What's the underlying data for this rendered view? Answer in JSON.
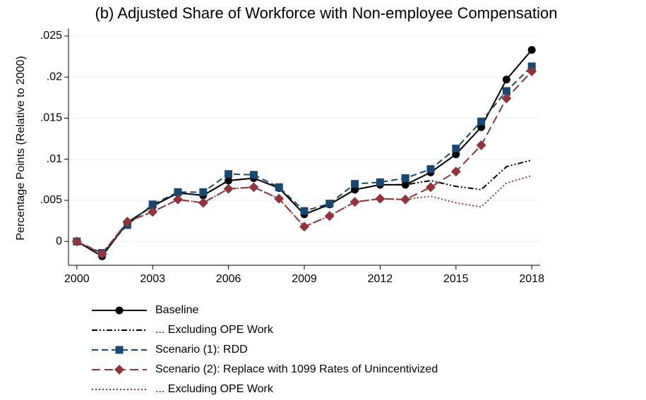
{
  "chart_data": {
    "type": "line",
    "title": "(b) Adjusted Share of Workforce with Non-employee Compensation",
    "y_label": "Percentage Points (Relative to 2000)",
    "x": [
      2000,
      2001,
      2002,
      2003,
      2004,
      2005,
      2006,
      2007,
      2008,
      2009,
      2010,
      2011,
      2012,
      2013,
      2014,
      2015,
      2016,
      2017,
      2018
    ],
    "xlim": [
      1999.67,
      2018.33
    ],
    "xticks": [
      2000,
      2003,
      2006,
      2009,
      2012,
      2015,
      2018
    ],
    "ylim": [
      -0.0029,
      0.0259
    ],
    "yticks": [
      0,
      {
        "value": 0.005,
        "label": ".005"
      },
      {
        "value": 0.01,
        "label": ".01"
      },
      {
        "value": 0.015,
        "label": ".015"
      },
      {
        "value": 0.02,
        "label": ".02"
      },
      {
        "value": 0.025,
        "label": ".025"
      }
    ],
    "series": [
      {
        "name": "Baseline",
        "color": "#000000",
        "dash": "solid",
        "marker": "circle",
        "values": [
          0,
          -0.0018,
          0.0023,
          0.0043,
          0.0059,
          0.0056,
          0.0074,
          0.0077,
          0.0065,
          0.0033,
          0.0045,
          0.0063,
          0.0069,
          0.0069,
          0.0084,
          0.0106,
          0.0139,
          0.0197,
          0.0233
        ]
      },
      {
        "name": "... Excluding OPE Work",
        "color": "#000000",
        "dash": "dashdot",
        "marker": "none",
        "values": [
          0,
          -0.0018,
          0.0023,
          0.0043,
          0.0059,
          0.0056,
          0.0074,
          0.0077,
          0.0065,
          0.0033,
          0.0045,
          0.0063,
          0.0069,
          0.0069,
          0.0074,
          0.0067,
          0.0063,
          0.0091,
          0.0099
        ]
      },
      {
        "name": "Scenario (1): RDD",
        "color": "#1a476f",
        "dash": "dash",
        "marker": "square",
        "values": [
          0,
          -0.0014,
          0.002,
          0.0045,
          0.006,
          0.006,
          0.0082,
          0.0081,
          0.0066,
          0.0037,
          0.0046,
          0.007,
          0.0072,
          0.0077,
          0.0088,
          0.0113,
          0.0146,
          0.0183,
          0.0213
        ]
      },
      {
        "name": "Scenario (2): Replace with 1099 Rates of Unincentivized",
        "color": "#90353b",
        "dash": "longdash",
        "marker": "diamond",
        "values": [
          0,
          -0.0015,
          0.0024,
          0.0036,
          0.0051,
          0.0047,
          0.0064,
          0.0066,
          0.0052,
          0.0018,
          0.0031,
          0.0048,
          0.0052,
          0.0051,
          0.0066,
          0.0085,
          0.0117,
          0.0174,
          0.0207
        ]
      },
      {
        "name": "... Excluding OPE Work",
        "color": "#90353b",
        "dash": "dot",
        "marker": "none",
        "values": [
          0,
          -0.0015,
          0.0024,
          0.0036,
          0.0051,
          0.0047,
          0.0064,
          0.0066,
          0.0052,
          0.0018,
          0.0031,
          0.0048,
          0.0052,
          0.0051,
          0.0055,
          0.0047,
          0.0042,
          0.0071,
          0.008
        ]
      }
    ],
    "grid": true
  }
}
